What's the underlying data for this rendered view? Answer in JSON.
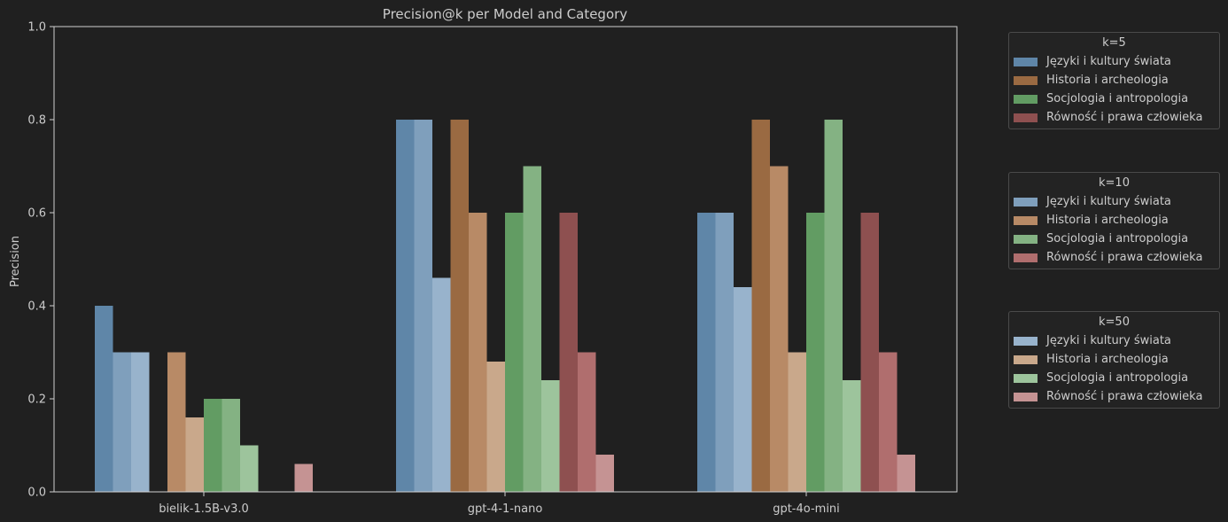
{
  "chart_data": {
    "type": "bar",
    "title": "Precision@k per Model and Category",
    "xlabel": "",
    "ylabel": "Precision",
    "ylim": [
      0,
      1.0
    ],
    "yticks": [
      "0.0",
      "0.2",
      "0.4",
      "0.6",
      "0.8",
      "1.0"
    ],
    "grid": false,
    "categories": [
      "bielik-1.5B-v3.0",
      "gpt-4-1-nano",
      "gpt-4o-mini"
    ],
    "series": [
      {
        "name": "Języki i kultury świata",
        "k": "k=5",
        "color": "#5f86a8",
        "values": [
          0.4,
          0.8,
          0.6
        ]
      },
      {
        "name": "Języki i kultury świata",
        "k": "k=10",
        "color": "#7f9fbc",
        "values": [
          0.3,
          0.8,
          0.6
        ]
      },
      {
        "name": "Języki i kultury świata",
        "k": "k=50",
        "color": "#98b3cc",
        "values": [
          0.3,
          0.46,
          0.44
        ]
      },
      {
        "name": "Historia i archeologia",
        "k": "k=5",
        "color": "#9a6a42",
        "values": [
          0.0,
          0.8,
          0.8
        ]
      },
      {
        "name": "Historia i archeologia",
        "k": "k=10",
        "color": "#b88a66",
        "values": [
          0.3,
          0.6,
          0.7
        ]
      },
      {
        "name": "Historia i archeologia",
        "k": "k=50",
        "color": "#c9a88b",
        "values": [
          0.16,
          0.28,
          0.3
        ]
      },
      {
        "name": "Socjologia i antropologia",
        "k": "k=5",
        "color": "#629c63",
        "values": [
          0.2,
          0.6,
          0.6
        ]
      },
      {
        "name": "Socjologia i antropologia",
        "k": "k=10",
        "color": "#84b283",
        "values": [
          0.2,
          0.7,
          0.8
        ]
      },
      {
        "name": "Socjologia i antropologia",
        "k": "k=50",
        "color": "#9dc49c",
        "values": [
          0.1,
          0.24,
          0.24
        ]
      },
      {
        "name": "Równość i prawa człowieka",
        "k": "k=5",
        "color": "#8e5050",
        "values": [
          0.0,
          0.6,
          0.6
        ]
      },
      {
        "name": "Równość i prawa człowieka",
        "k": "k=10",
        "color": "#b06e6e",
        "values": [
          0.0,
          0.3,
          0.3
        ]
      },
      {
        "name": "Równość i prawa człowieka",
        "k": "k=50",
        "color": "#c59393",
        "values": [
          0.06,
          0.08,
          0.08
        ]
      }
    ],
    "legend_placement": "right-outside",
    "legends": [
      {
        "title": "k=5",
        "entries": [
          {
            "label": "Języki i kultury świata",
            "color": "#5f86a8"
          },
          {
            "label": "Historia i archeologia",
            "color": "#9a6a42"
          },
          {
            "label": "Socjologia i antropologia",
            "color": "#629c63"
          },
          {
            "label": "Równość i prawa człowieka",
            "color": "#8e5050"
          }
        ]
      },
      {
        "title": "k=10",
        "entries": [
          {
            "label": "Języki i kultury świata",
            "color": "#7f9fbc"
          },
          {
            "label": "Historia i archeologia",
            "color": "#b88a66"
          },
          {
            "label": "Socjologia i antropologia",
            "color": "#84b283"
          },
          {
            "label": "Równość i prawa człowieka",
            "color": "#b06e6e"
          }
        ]
      },
      {
        "title": "k=50",
        "entries": [
          {
            "label": "Języki i kultury świata",
            "color": "#98b3cc"
          },
          {
            "label": "Historia i archeologia",
            "color": "#c9a88b"
          },
          {
            "label": "Socjologia i antropologia",
            "color": "#9dc49c"
          },
          {
            "label": "Równość i prawa człowieka",
            "color": "#c59393"
          }
        ]
      }
    ]
  }
}
